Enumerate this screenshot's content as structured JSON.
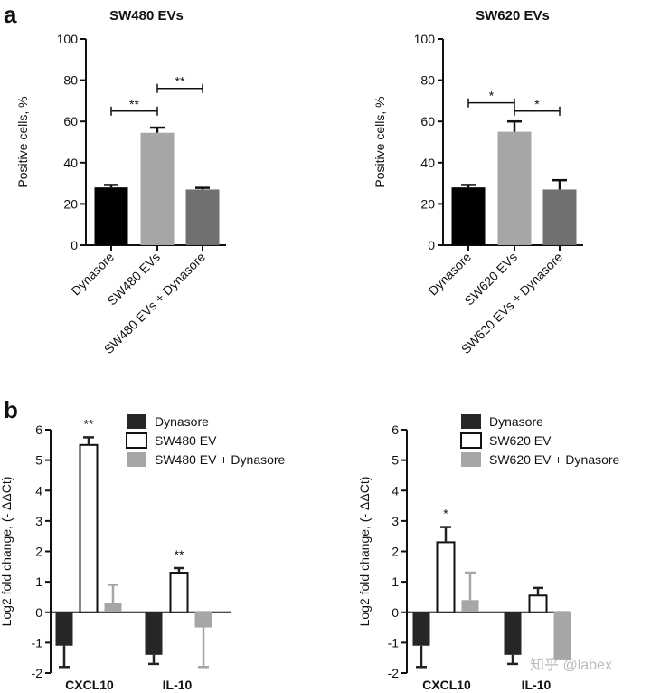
{
  "panels": {
    "a": "a",
    "b": "b"
  },
  "watermark": "知乎 @labex",
  "chart_data": [
    {
      "id": "a_left",
      "type": "bar",
      "title": "SW480  EVs",
      "ylabel": "Positive cells, %",
      "ylim": [
        0,
        100
      ],
      "yticks": [
        "0",
        "20",
        "40",
        "60",
        "80",
        "100"
      ],
      "categories": [
        "Dynasore",
        "SW480 EVs",
        "SW480 EVs + Dynasore"
      ],
      "values": [
        28,
        54.5,
        27
      ],
      "errors": [
        1.2,
        2.5,
        0.8
      ],
      "colors": [
        "#000000",
        "#a6a6a6",
        "#707070"
      ],
      "significance": [
        {
          "from": 0,
          "to": 1,
          "label": "**",
          "y": 65
        },
        {
          "from": 1,
          "to": 2,
          "label": "**",
          "y": 76
        }
      ]
    },
    {
      "id": "a_right",
      "type": "bar",
      "title": "SW620 EVs",
      "ylabel": "Positive cells, %",
      "ylim": [
        0,
        100
      ],
      "yticks": [
        "0",
        "20",
        "40",
        "60",
        "80",
        "100"
      ],
      "categories": [
        "Dynasore",
        "SW620 EVs",
        "SW620 EVs + Dynasore"
      ],
      "values": [
        28,
        55,
        27
      ],
      "errors": [
        1.2,
        5,
        4.5
      ],
      "colors": [
        "#000000",
        "#a6a6a6",
        "#707070"
      ],
      "significance": [
        {
          "from": 0,
          "to": 1,
          "label": "*",
          "y": 69
        },
        {
          "from": 1,
          "to": 2,
          "label": "*",
          "y": 65
        }
      ]
    },
    {
      "id": "b_left",
      "type": "bar",
      "ylabel": "Log2 fold change, (- ΔΔCt)",
      "ylim": [
        -2,
        6
      ],
      "yticks": [
        "-2",
        "-1",
        "0",
        "1",
        "2",
        "3",
        "4",
        "5",
        "6"
      ],
      "categories": [
        "CXCL10",
        "IL-10"
      ],
      "legend": [
        "Dynasore",
        "SW480 EV",
        "SW480 EV + Dynasore"
      ],
      "legend_colors": [
        "#262626",
        "#ffffff",
        "#a6a6a6"
      ],
      "series": [
        {
          "name": "Dynasore",
          "values": [
            -1.1,
            -1.4
          ],
          "errors": [
            0.7,
            0.3
          ]
        },
        {
          "name": "SW480 EV",
          "values": [
            5.5,
            1.3
          ],
          "errors": [
            0.25,
            0.15
          ]
        },
        {
          "name": "SW480 EV + Dynasore",
          "values": [
            0.3,
            -0.5
          ],
          "errors": [
            0.6,
            1.3
          ]
        }
      ],
      "significance": [
        {
          "category": 0,
          "series": 1,
          "label": "**"
        },
        {
          "category": 1,
          "series": 1,
          "label": "**"
        }
      ]
    },
    {
      "id": "b_right",
      "type": "bar",
      "ylabel": "Log2 fold change, (- ΔΔCt)",
      "ylim": [
        -2,
        6
      ],
      "yticks": [
        "-2",
        "-1",
        "0",
        "1",
        "2",
        "3",
        "4",
        "5",
        "6"
      ],
      "categories": [
        "CXCL10",
        "IL-10"
      ],
      "legend": [
        "Dynasore",
        "SW620 EV",
        "SW620 EV + Dynasore"
      ],
      "legend_colors": [
        "#262626",
        "#ffffff",
        "#a6a6a6"
      ],
      "series": [
        {
          "name": "Dynasore",
          "values": [
            -1.1,
            -1.4
          ],
          "errors": [
            0.7,
            0.3
          ]
        },
        {
          "name": "SW620 EV",
          "values": [
            2.3,
            0.55
          ],
          "errors": [
            0.5,
            0.25
          ]
        },
        {
          "name": "SW620 EV + Dynasore",
          "values": [
            0.4,
            -1.55
          ],
          "errors": [
            0.9,
            0
          ]
        }
      ],
      "significance": [
        {
          "category": 0,
          "series": 1,
          "label": "*"
        }
      ]
    }
  ]
}
